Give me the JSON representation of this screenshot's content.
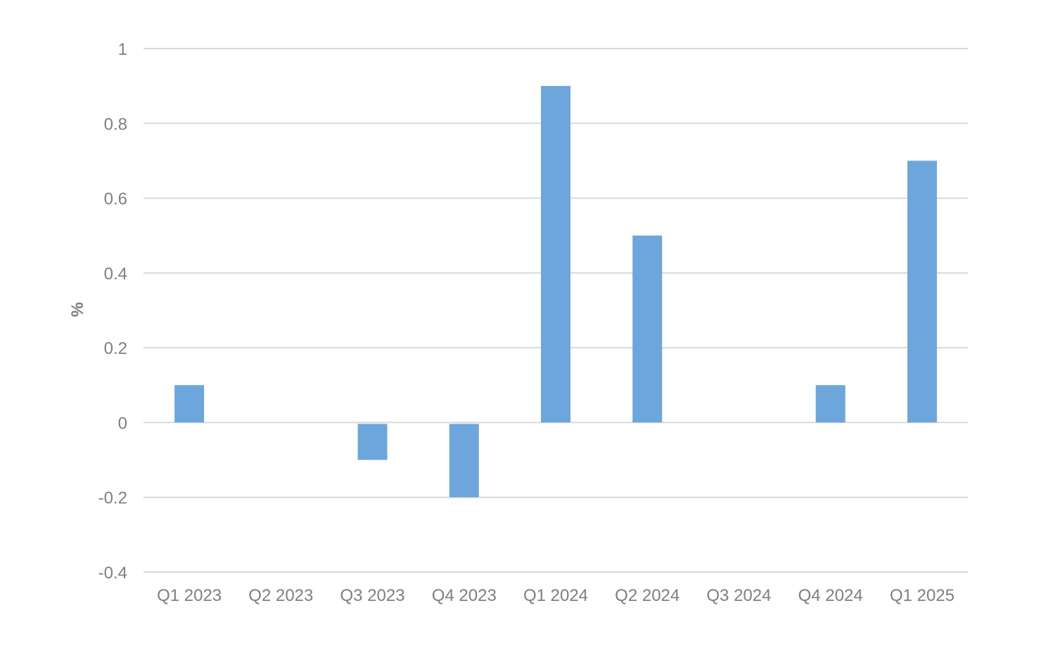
{
  "chart_data": {
    "type": "bar",
    "title": "",
    "xlabel": "",
    "ylabel": "%",
    "categories": [
      "Q1 2023",
      "Q2 2023",
      "Q3 2023",
      "Q4 2023",
      "Q1 2024",
      "Q2 2024",
      "Q3 2024",
      "Q4 2024",
      "Q1 2025"
    ],
    "values": [
      0.1,
      0.0,
      -0.1,
      -0.2,
      0.9,
      0.5,
      0.0,
      0.1,
      0.7
    ],
    "ylim": [
      -0.4,
      1.0
    ],
    "yticks": [
      -0.4,
      -0.2,
      0,
      0.2,
      0.4,
      0.6,
      0.8,
      1
    ],
    "ytick_labels": [
      "-0.4",
      "-0.2",
      "0",
      "0.2",
      "0.4",
      "0.6",
      "0.8",
      "1"
    ],
    "grid": true,
    "legend": "none",
    "colors": {
      "bar": "#6CA6DC",
      "grid": "#D9D9D9",
      "text": "#7F7F7F",
      "background": "#FFFFFF"
    }
  }
}
